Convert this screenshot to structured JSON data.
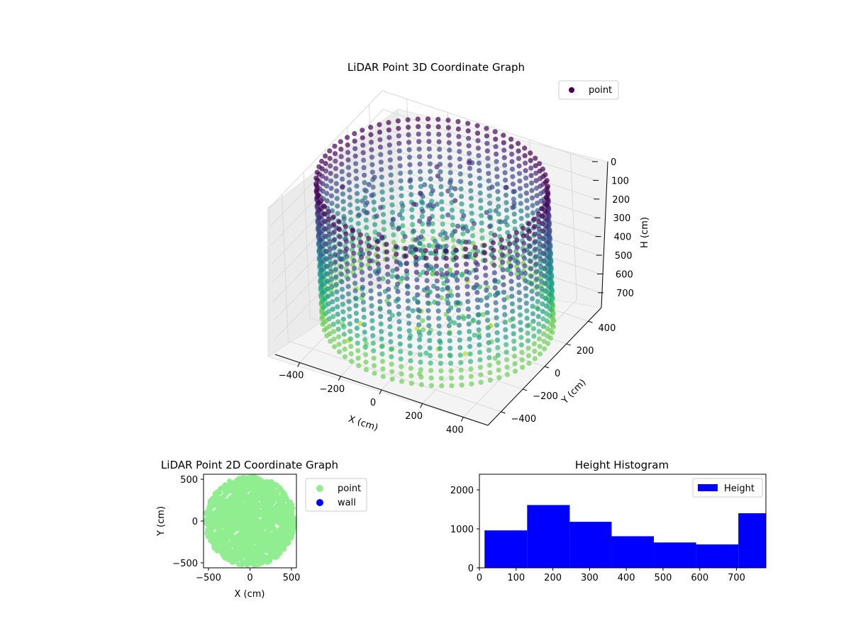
{
  "chart_data": [
    {
      "type": "scatter",
      "projection": "3d",
      "title": "LiDAR Point 3D Coordinate Graph",
      "xlabel": "X (cm)",
      "ylabel": "Y (cm)",
      "zlabel": "H (cm)",
      "x_ticks": [
        "−400",
        "−200",
        "0",
        "200",
        "400"
      ],
      "y_ticks": [
        "400",
        "200",
        "0",
        "−200",
        "−400"
      ],
      "z_ticks": [
        "0",
        "100",
        "200",
        "300",
        "400",
        "500",
        "600",
        "700"
      ],
      "xlim": [
        -520,
        520
      ],
      "ylim": [
        -520,
        520
      ],
      "zlim": [
        0,
        780
      ],
      "z_inverted": true,
      "legend": {
        "labels": [
          "point"
        ],
        "position": "top-right"
      },
      "colormap": "viridis",
      "series": [
        {
          "name": "point",
          "color": "#440154",
          "description_ring_radius": 500,
          "description_columns": 72
        }
      ],
      "grid": true
    },
    {
      "type": "scatter",
      "title": "LiDAR Point 2D Coordinate Graph",
      "xlabel": "X (cm)",
      "ylabel": "Y (cm)",
      "x_ticks": [
        -500,
        0,
        500
      ],
      "y_ticks": [
        -500,
        0,
        500
      ],
      "xlim": [
        -560,
        560
      ],
      "ylim": [
        -560,
        560
      ],
      "legend": {
        "labels": [
          "point",
          "wall"
        ],
        "position": "outside-right"
      },
      "series": [
        {
          "name": "point",
          "color": "#90ee90"
        },
        {
          "name": "wall",
          "color": "#0000ff"
        }
      ],
      "grid": false
    },
    {
      "type": "bar",
      "title": "Height Histogram",
      "xlabel": "",
      "ylabel": "",
      "bins": [
        {
          "start": 14,
          "end": 130,
          "count": 960
        },
        {
          "start": 130,
          "end": 246,
          "count": 1610
        },
        {
          "start": 246,
          "end": 360,
          "count": 1180
        },
        {
          "start": 360,
          "end": 475,
          "count": 810
        },
        {
          "start": 475,
          "end": 590,
          "count": 650
        },
        {
          "start": 590,
          "end": 705,
          "count": 600
        },
        {
          "start": 705,
          "end": 780,
          "count": 1400
        }
      ],
      "x_ticks": [
        0,
        100,
        200,
        300,
        400,
        500,
        600,
        700
      ],
      "y_ticks": [
        0,
        1000,
        2000
      ],
      "xlim": [
        0,
        780
      ],
      "ylim": [
        0,
        2400
      ],
      "legend": {
        "labels": [
          "Height"
        ],
        "position": "top-right"
      },
      "series": [
        {
          "name": "Height",
          "color": "#0000ff"
        }
      ],
      "grid": false
    }
  ]
}
